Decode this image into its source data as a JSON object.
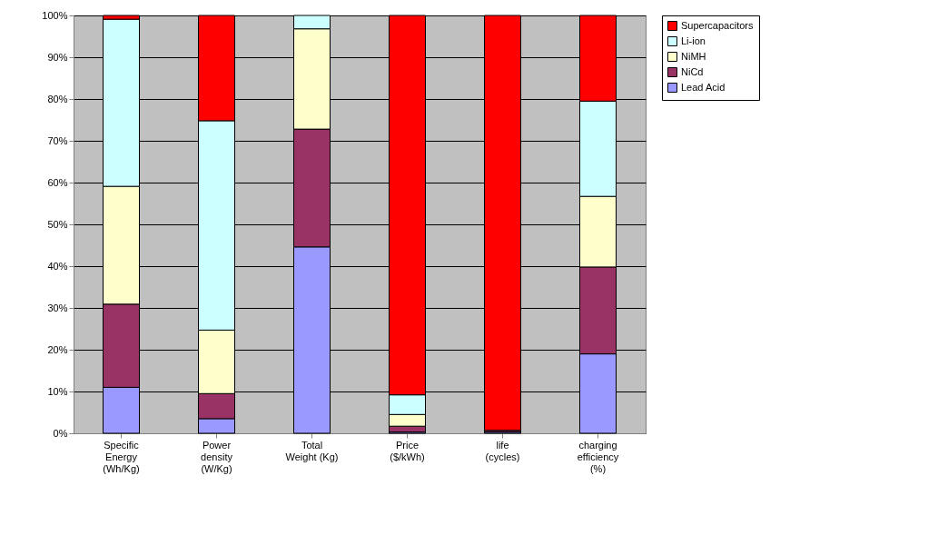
{
  "chart_data": {
    "type": "bar",
    "stacked": true,
    "categories": [
      "Specific Energy (Wh/Kg)",
      "Power density (W/Kg)",
      "Total Weight (Kg)",
      "Price ($/kWh)",
      "life (cycles)",
      "charging efficiency (%)"
    ],
    "series": [
      {
        "name": "Lead Acid",
        "color": "#9999ff",
        "values": [
          11.0,
          3.5,
          44.6,
          0.3,
          0.3,
          19.0
        ]
      },
      {
        "name": "NiCd",
        "color": "#993366",
        "values": [
          19.9,
          6.0,
          28.2,
          1.4,
          0.4,
          20.8
        ]
      },
      {
        "name": "NiMH",
        "color": "#ffffcc",
        "values": [
          28.2,
          15.2,
          24.0,
          2.8,
          0,
          16.9
        ]
      },
      {
        "name": "Li-ion",
        "color": "#ccffff",
        "values": [
          40.0,
          50.1,
          3.2,
          4.7,
          0,
          22.8
        ]
      },
      {
        "name": "Supercapacitors",
        "color": "#ff0000",
        "values": [
          0.9,
          25.2,
          0,
          90.8,
          99.3,
          20.5
        ]
      }
    ],
    "ylim": [
      0,
      100
    ],
    "yticks": [
      {
        "value": 0,
        "label": "0%"
      },
      {
        "value": 10,
        "label": "10%"
      },
      {
        "value": 20,
        "label": "20%"
      },
      {
        "value": 30,
        "label": "30%"
      },
      {
        "value": 40,
        "label": "40%"
      },
      {
        "value": 50,
        "label": "50%"
      },
      {
        "value": 60,
        "label": "60%"
      },
      {
        "value": 70,
        "label": "70%"
      },
      {
        "value": 80,
        "label": "80%"
      },
      {
        "value": 90,
        "label": "90%"
      },
      {
        "value": 100,
        "label": "100%"
      }
    ],
    "grid": "y",
    "legend": "right"
  }
}
